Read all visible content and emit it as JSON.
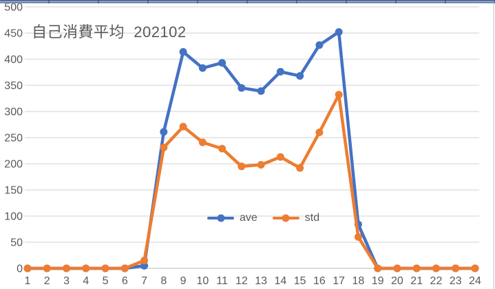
{
  "top_strip": {
    "edge_dark": "#2f4470",
    "edge_light": "#9fafd0",
    "edge_mid": "#5f7ab0"
  },
  "chart": {
    "title": "自己消費平均  202102",
    "title_color": "#595959",
    "axis_text_color": "#595959",
    "grid_color": "#d9d9d9",
    "axis_line_color": "#c6c6c6",
    "border_color": "#bfbfbf"
  },
  "chart_data": {
    "type": "line",
    "title": "自己消費平均 202102",
    "x": [
      1,
      2,
      3,
      4,
      5,
      6,
      7,
      8,
      9,
      10,
      11,
      12,
      13,
      14,
      15,
      16,
      17,
      18,
      19,
      20,
      21,
      22,
      23,
      24
    ],
    "series": [
      {
        "name": "ave",
        "color": "#4472c4",
        "values": [
          0,
          0,
          0,
          0,
          0,
          0,
          5,
          261,
          414,
          383,
          393,
          345,
          339,
          376,
          368,
          427,
          452,
          84,
          0,
          0,
          0,
          0,
          0,
          0
        ]
      },
      {
        "name": "std",
        "color": "#ed7d31",
        "values": [
          0,
          0,
          0,
          0,
          0,
          0,
          15,
          231,
          271,
          241,
          229,
          195,
          198,
          213,
          192,
          260,
          332,
          60,
          0,
          0,
          0,
          0,
          0,
          0
        ]
      }
    ],
    "ylim": [
      0,
      500
    ],
    "ytick_step": 50,
    "yticks": [
      0,
      50,
      100,
      150,
      200,
      250,
      300,
      350,
      400,
      450,
      500
    ],
    "grid": true,
    "legend_position": "inside-bottom-center",
    "legend": [
      {
        "label": "ave",
        "color": "#4472c4"
      },
      {
        "label": "std",
        "color": "#ed7d31"
      }
    ]
  }
}
